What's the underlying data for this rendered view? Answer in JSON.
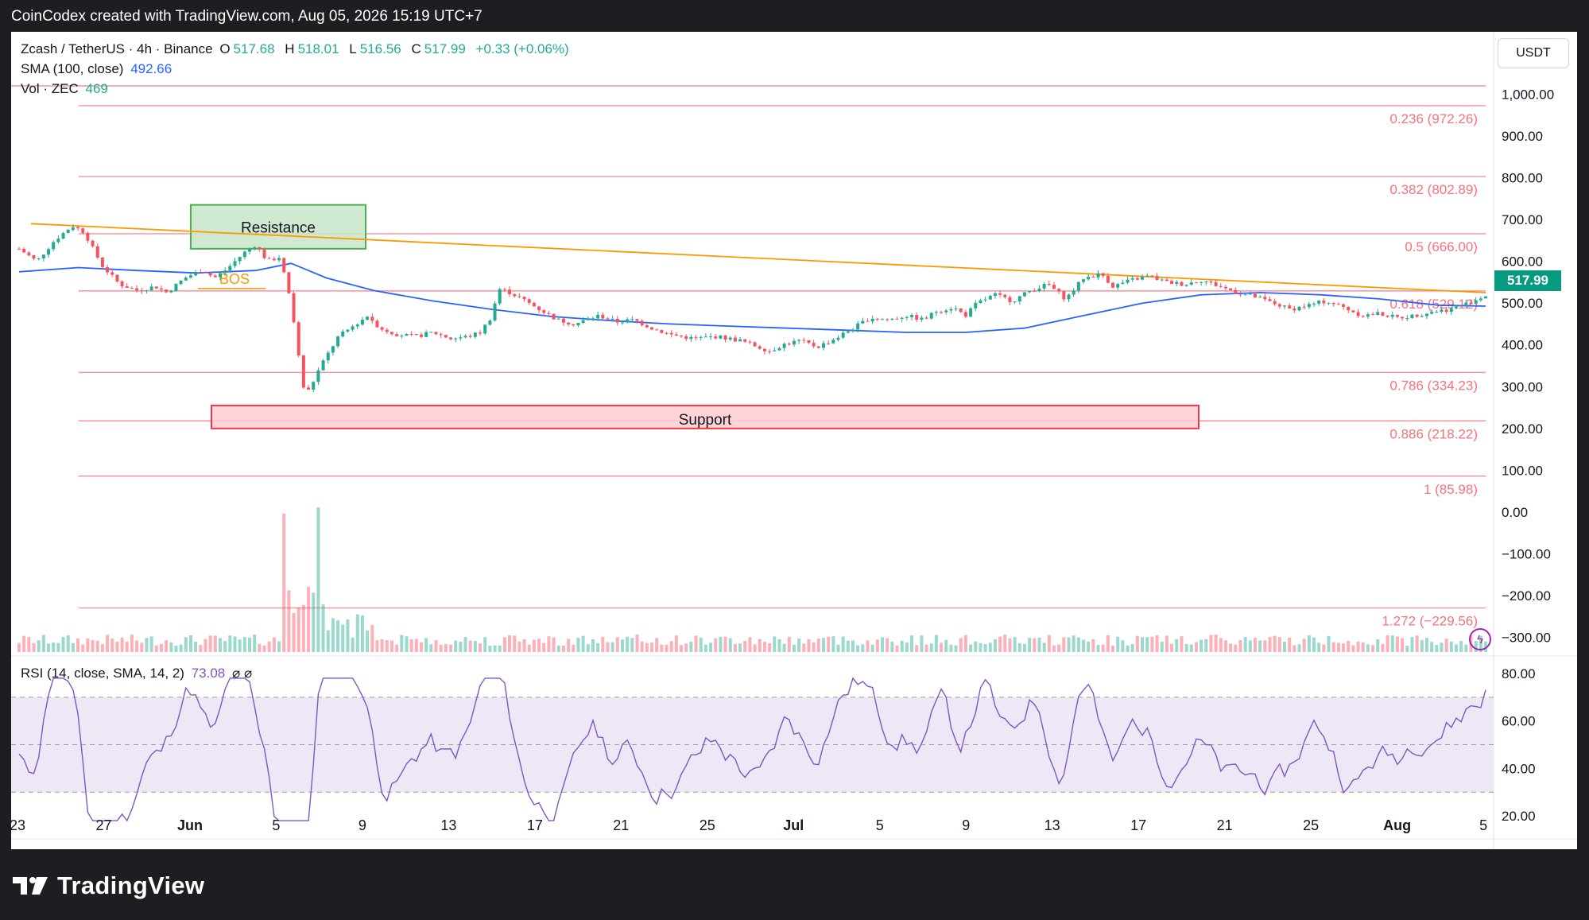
{
  "header": {
    "text": "CoinCodex created with TradingView.com, Aug 05, 2026 15:19 UTC+7"
  },
  "legend": {
    "symbol": "Zcash / TetherUS · 4h · Binance",
    "o_label": "O",
    "o_value": "517.68",
    "h_label": "H",
    "h_value": "518.01",
    "l_label": "L",
    "l_value": "516.56",
    "c_label": "C",
    "c_value": "517.99",
    "change": "+0.33 (+0.06%)",
    "sma_label": "SMA (100, close)",
    "sma_value": "492.66",
    "vol_label": "Vol · ZEC",
    "vol_value": "469",
    "rsi_label": "RSI (14, close, SMA, 14, 2)",
    "rsi_value": "73.08",
    "rsi_extra": "⌀ ⌀"
  },
  "currency_button": "USDT",
  "last_price": "517.99",
  "footer": {
    "brand": "TradingView"
  },
  "icons": {
    "logo": "tradingview-logo-icon",
    "bolt": "lightning-bolt-icon"
  },
  "colors": {
    "up": "#22ab94",
    "down": "#f7525f",
    "sma": "#2962ff",
    "trendline": "#ff9800",
    "fib": "#f23645",
    "rsi": "#7e57c2",
    "rsi_band": "#ede7f6",
    "resistance_fill": "#c8e6c9",
    "resistance_border": "#4caf50",
    "support_fill": "#ffcdd2",
    "support_border": "#f23645"
  },
  "chart_data": {
    "type": "candlestick",
    "title": "Zcash / TetherUS · 4h · Binance",
    "x_ticks": [
      "23",
      "27",
      "Jun",
      "5",
      "9",
      "13",
      "17",
      "21",
      "25",
      "Jul",
      "5",
      "9",
      "13",
      "17",
      "21",
      "25",
      "Aug",
      "5"
    ],
    "y_ticks": [
      "1,000.00",
      "900.00",
      "800.00",
      "700.00",
      "600.00",
      "500.00",
      "400.00",
      "300.00",
      "200.00",
      "100.00",
      "0.00",
      "−100.00",
      "−200.00",
      "−300.00"
    ],
    "y_range": [
      -335,
      1035
    ],
    "rsi_ticks": [
      "80.00",
      "60.00",
      "40.00",
      "20.00"
    ],
    "rsi_range": [
      12,
      83
    ],
    "rsi_bands": [
      30,
      70
    ],
    "fib_levels": [
      {
        "label": "0.236 (972.26)",
        "value": 972.26
      },
      {
        "label": "0.382 (802.89)",
        "value": 802.89
      },
      {
        "label": "0.5 (666.00)",
        "value": 666.0
      },
      {
        "label": "0.618 (529.12)",
        "value": 529.12
      },
      {
        "label": "0.786 (334.23)",
        "value": 334.23
      },
      {
        "label": "0.886 (218.22)",
        "value": 218.22
      },
      {
        "label": "1 (85.98)",
        "value": 85.98
      },
      {
        "label": "1.272 (−229.56)",
        "value": -229.56
      }
    ],
    "annotations": {
      "resistance": {
        "label": "Resistance",
        "low": 630,
        "high": 735,
        "from": "Jun 1",
        "to": "Jun 9"
      },
      "support": {
        "label": "Support",
        "low": 200,
        "high": 255,
        "from": "May 31",
        "to": "Jul 22"
      },
      "bos_label": "BOS",
      "bos_level": 535,
      "trendline": {
        "from": [
          0,
          690
        ],
        "to": [
          1,
          525
        ]
      }
    },
    "price_path": [
      [
        0,
        630
      ],
      [
        0.015,
        600
      ],
      [
        0.03,
        650
      ],
      [
        0.045,
        685
      ],
      [
        0.055,
        670
      ],
      [
        0.07,
        590
      ],
      [
        0.085,
        545
      ],
      [
        0.1,
        530
      ],
      [
        0.115,
        540
      ],
      [
        0.125,
        525
      ],
      [
        0.14,
        560
      ],
      [
        0.155,
        580
      ],
      [
        0.165,
        560
      ],
      [
        0.175,
        580
      ],
      [
        0.19,
        620
      ],
      [
        0.2,
        640
      ],
      [
        0.21,
        600
      ],
      [
        0.22,
        610
      ],
      [
        0.225,
        560
      ],
      [
        0.23,
        500
      ],
      [
        0.24,
        300
      ],
      [
        0.245,
        290
      ],
      [
        0.255,
        350
      ],
      [
        0.27,
        420
      ],
      [
        0.285,
        450
      ],
      [
        0.295,
        470
      ],
      [
        0.305,
        440
      ],
      [
        0.32,
        425
      ],
      [
        0.335,
        420
      ],
      [
        0.35,
        430
      ],
      [
        0.365,
        415
      ],
      [
        0.38,
        420
      ],
      [
        0.39,
        430
      ],
      [
        0.4,
        470
      ],
      [
        0.405,
        535
      ],
      [
        0.415,
        525
      ],
      [
        0.425,
        510
      ],
      [
        0.44,
        485
      ],
      [
        0.455,
        460
      ],
      [
        0.47,
        450
      ],
      [
        0.49,
        470
      ],
      [
        0.505,
        455
      ],
      [
        0.52,
        460
      ],
      [
        0.535,
        440
      ],
      [
        0.55,
        425
      ],
      [
        0.57,
        415
      ],
      [
        0.59,
        420
      ],
      [
        0.61,
        410
      ],
      [
        0.625,
        395
      ],
      [
        0.635,
        385
      ],
      [
        0.645,
        400
      ],
      [
        0.66,
        410
      ],
      [
        0.675,
        395
      ],
      [
        0.69,
        415
      ],
      [
        0.705,
        440
      ],
      [
        0.72,
        465
      ],
      [
        0.735,
        460
      ],
      [
        0.75,
        470
      ],
      [
        0.765,
        460
      ],
      [
        0.775,
        480
      ],
      [
        0.79,
        490
      ],
      [
        0.8,
        470
      ],
      [
        0.81,
        500
      ],
      [
        0.825,
        520
      ],
      [
        0.84,
        505
      ],
      [
        0.855,
        530
      ],
      [
        0.87,
        545
      ],
      [
        0.885,
        510
      ],
      [
        0.9,
        560
      ],
      [
        0.915,
        570
      ],
      [
        0.925,
        540
      ],
      [
        0.94,
        555
      ],
      [
        0.955,
        565
      ],
      [
        0.97,
        550
      ],
      [
        0.985,
        545
      ],
      [
        1.0,
        555
      ],
      [
        1.015,
        540
      ],
      [
        1.03,
        525
      ],
      [
        1.045,
        515
      ],
      [
        1.06,
        500
      ],
      [
        1.075,
        485
      ],
      [
        1.09,
        495
      ],
      [
        1.105,
        505
      ],
      [
        1.12,
        490
      ],
      [
        1.135,
        470
      ],
      [
        1.15,
        475
      ],
      [
        1.165,
        465
      ],
      [
        1.18,
        470
      ],
      [
        1.195,
        480
      ],
      [
        1.21,
        485
      ],
      [
        1.225,
        500
      ],
      [
        1.24,
        518
      ]
    ],
    "sma_path": [
      [
        0,
        575
      ],
      [
        0.05,
        585
      ],
      [
        0.1,
        578
      ],
      [
        0.15,
        572
      ],
      [
        0.2,
        578
      ],
      [
        0.23,
        595
      ],
      [
        0.26,
        560
      ],
      [
        0.3,
        530
      ],
      [
        0.35,
        505
      ],
      [
        0.4,
        485
      ],
      [
        0.45,
        468
      ],
      [
        0.5,
        458
      ],
      [
        0.55,
        450
      ],
      [
        0.6,
        445
      ],
      [
        0.65,
        440
      ],
      [
        0.7,
        435
      ],
      [
        0.75,
        430
      ],
      [
        0.8,
        430
      ],
      [
        0.85,
        440
      ],
      [
        0.9,
        470
      ],
      [
        0.95,
        500
      ],
      [
        1.0,
        520
      ],
      [
        1.05,
        525
      ],
      [
        1.1,
        520
      ],
      [
        1.15,
        510
      ],
      [
        1.2,
        495
      ],
      [
        1.24,
        492.66
      ]
    ]
  }
}
